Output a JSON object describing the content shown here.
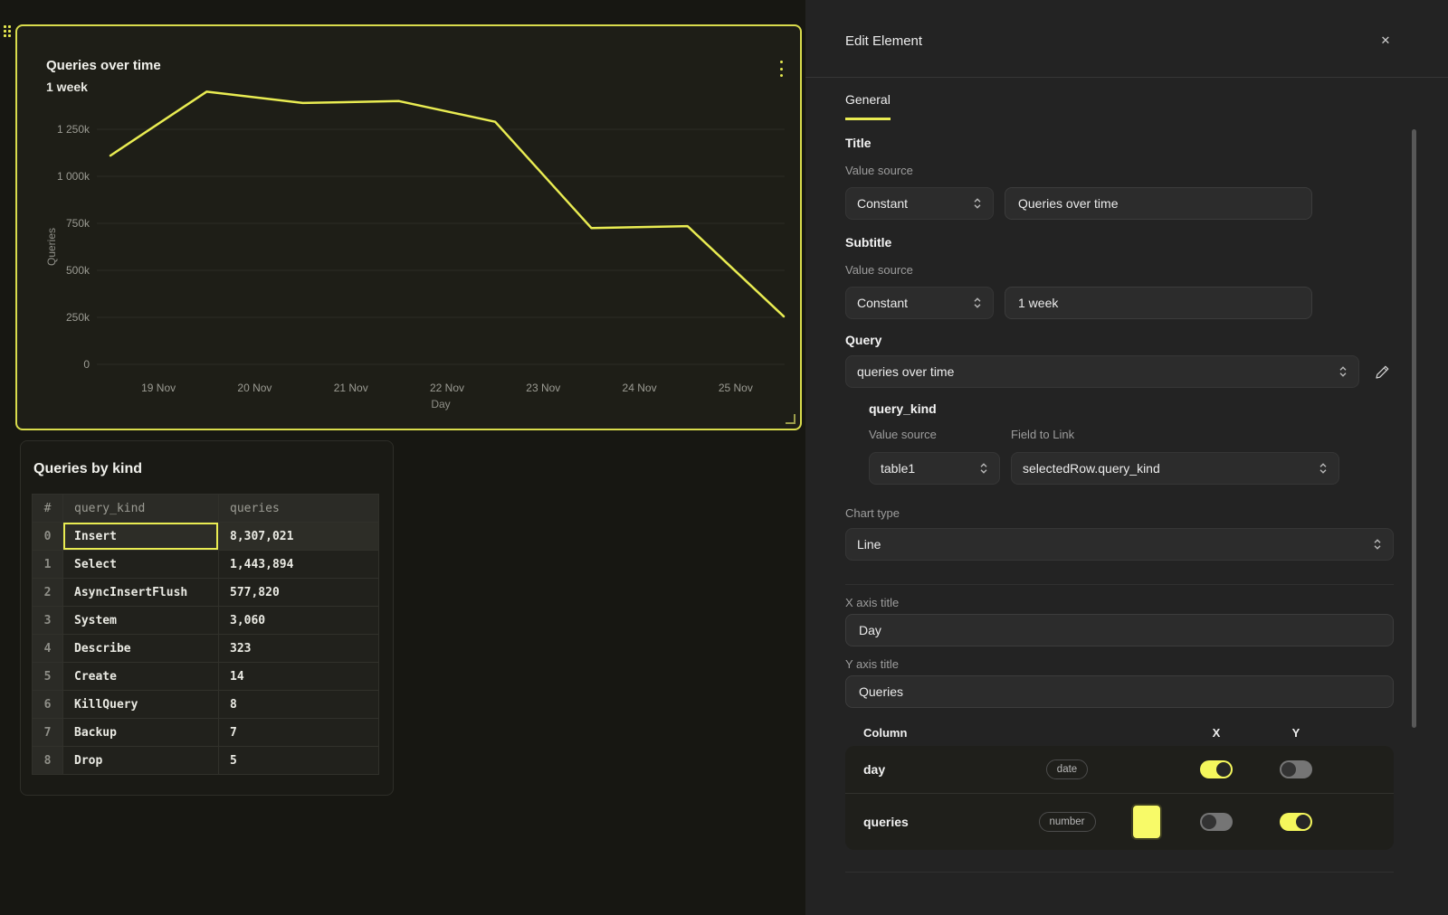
{
  "accent_color": "#e9ec52",
  "chart_card": {
    "kebab_icon": "kebab-menu-icon",
    "drag_handle_icon": "drag-handle-icon",
    "resize_handle_icon": "resize-corner-icon"
  },
  "chart_data": {
    "type": "line",
    "title": "Queries over time",
    "subtitle": "1 week",
    "xlabel": "Day",
    "ylabel": "Queries",
    "x_tick_labels": [
      "19 Nov",
      "20 Nov",
      "21 Nov",
      "22 Nov",
      "23 Nov",
      "24 Nov",
      "25 Nov"
    ],
    "y_tick_labels": [
      "0",
      "250k",
      "500k",
      "750k",
      "1 000k",
      "1 250k"
    ],
    "y_tick_values": [
      0,
      250000,
      500000,
      750000,
      1000000,
      1250000
    ],
    "ylim": [
      0,
      1500000
    ],
    "grid": true,
    "legend": "none",
    "series": [
      {
        "name": "queries",
        "color": "#e9ec52",
        "values_estimated": [
          1110000,
          1450000,
          1390000,
          1400000,
          1290000,
          725000,
          735000,
          255000
        ]
      }
    ],
    "note": "8 evenly spaced daily points; x tick labels sit midway between points"
  },
  "table_card": {
    "title": "Queries by kind",
    "columns": [
      "#",
      "query_kind",
      "queries"
    ],
    "rows": [
      [
        "0",
        "Insert",
        "8,307,021"
      ],
      [
        "1",
        "Select",
        "1,443,894"
      ],
      [
        "2",
        "AsyncInsertFlush",
        "577,820"
      ],
      [
        "3",
        "System",
        "3,060"
      ],
      [
        "4",
        "Describe",
        "323"
      ],
      [
        "5",
        "Create",
        "14"
      ],
      [
        "6",
        "KillQuery",
        "8"
      ],
      [
        "7",
        "Backup",
        "7"
      ],
      [
        "8",
        "Drop",
        "5"
      ]
    ],
    "selected_row": 0,
    "selected_column": 1
  },
  "panel": {
    "title": "Edit Element",
    "close_glyph": "✕",
    "tabs": [
      {
        "label": "General",
        "active": true
      }
    ],
    "sections": {
      "title": {
        "heading": "Title",
        "value_source_label": "Value source",
        "source": "Constant",
        "value": "Queries over time"
      },
      "subtitle": {
        "heading": "Subtitle",
        "value_source_label": "Value source",
        "source": "Constant",
        "value": "1 week"
      },
      "query": {
        "heading": "Query",
        "value": "queries over time",
        "edit_icon": "pencil-icon"
      },
      "query_kind": {
        "heading": "query_kind",
        "value_source_label": "Value source",
        "field_label": "Field to Link",
        "source": "table1",
        "field": "selectedRow.query_kind"
      },
      "chart_type": {
        "label": "Chart type",
        "value": "Line"
      },
      "x_axis": {
        "label": "X axis title",
        "value": "Day"
      },
      "y_axis": {
        "label": "Y axis title",
        "value": "Queries"
      },
      "columns": {
        "header": {
          "column": "Column",
          "x": "X",
          "y": "Y"
        },
        "rows": [
          {
            "name": "day",
            "type": "date",
            "x": true,
            "y": false,
            "color": null
          },
          {
            "name": "queries",
            "type": "number",
            "x": false,
            "y": true,
            "color": "#f8fa68"
          }
        ]
      }
    }
  }
}
